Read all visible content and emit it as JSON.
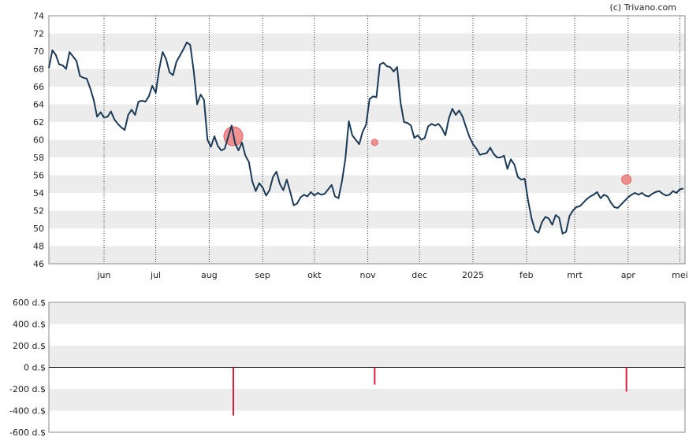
{
  "copyright": "(c) Trivano.com",
  "chart_data": [
    {
      "type": "line",
      "ylim": [
        46,
        74
      ],
      "y_ticks": [
        46,
        48,
        50,
        52,
        54,
        56,
        58,
        60,
        62,
        64,
        66,
        68,
        70,
        72,
        74
      ],
      "x_month_labels": [
        {
          "label": "jun",
          "day": 13
        },
        {
          "label": "jul",
          "day": 43
        },
        {
          "label": "aug",
          "day": 74
        },
        {
          "label": "sep",
          "day": 105
        },
        {
          "label": "okt",
          "day": 135
        },
        {
          "label": "nov",
          "day": 166
        },
        {
          "label": "dec",
          "day": 196
        },
        {
          "label": "2025",
          "day": 227
        },
        {
          "label": "feb",
          "day": 258
        },
        {
          "label": "mrt",
          "day": 286
        },
        {
          "label": "apr",
          "day": 317
        },
        {
          "label": "mei",
          "day": 347
        }
      ],
      "xlim": [
        -19,
        350
      ],
      "grid": true,
      "series": [
        {
          "color": "#1b3a57",
          "points": [
            [
              -19,
              68.1
            ],
            [
              -17,
              70.1
            ],
            [
              -15,
              69.6
            ],
            [
              -13,
              68.5
            ],
            [
              -11,
              68.4
            ],
            [
              -9,
              68.0
            ],
            [
              -7,
              69.9
            ],
            [
              -5,
              69.4
            ],
            [
              -3,
              68.9
            ],
            [
              -1,
              67.2
            ],
            [
              1,
              67.0
            ],
            [
              3,
              66.9
            ],
            [
              5,
              65.8
            ],
            [
              7,
              64.5
            ],
            [
              9,
              62.6
            ],
            [
              11,
              63.1
            ],
            [
              13,
              62.5
            ],
            [
              15,
              62.6
            ],
            [
              17,
              63.2
            ],
            [
              19,
              62.3
            ],
            [
              21,
              61.8
            ],
            [
              23,
              61.4
            ],
            [
              25,
              61.1
            ],
            [
              27,
              62.8
            ],
            [
              29,
              63.4
            ],
            [
              31,
              62.8
            ],
            [
              33,
              64.3
            ],
            [
              35,
              64.4
            ],
            [
              37,
              64.3
            ],
            [
              39,
              64.9
            ],
            [
              41,
              66.1
            ],
            [
              43,
              65.3
            ],
            [
              45,
              68.0
            ],
            [
              47,
              69.9
            ],
            [
              49,
              69.1
            ],
            [
              51,
              67.6
            ],
            [
              53,
              67.3
            ],
            [
              55,
              68.8
            ],
            [
              57,
              69.5
            ],
            [
              59,
              70.2
            ],
            [
              61,
              71.0
            ],
            [
              63,
              70.7
            ],
            [
              65,
              67.8
            ],
            [
              67,
              64.0
            ],
            [
              69,
              65.1
            ],
            [
              71,
              64.5
            ],
            [
              73,
              60.0
            ],
            [
              75,
              59.2
            ],
            [
              77,
              60.4
            ],
            [
              79,
              59.3
            ],
            [
              81,
              58.8
            ],
            [
              83,
              59.0
            ],
            [
              85,
              60.3
            ],
            [
              87,
              61.6
            ],
            [
              89,
              59.6
            ],
            [
              91,
              58.8
            ],
            [
              93,
              59.7
            ],
            [
              95,
              58.2
            ],
            [
              97,
              57.5
            ],
            [
              99,
              55.3
            ],
            [
              101,
              54.2
            ],
            [
              103,
              55.1
            ],
            [
              105,
              54.6
            ],
            [
              107,
              53.7
            ],
            [
              109,
              54.3
            ],
            [
              111,
              55.8
            ],
            [
              113,
              56.4
            ],
            [
              115,
              55.0
            ],
            [
              117,
              54.3
            ],
            [
              119,
              55.5
            ],
            [
              121,
              54.1
            ],
            [
              123,
              52.6
            ],
            [
              125,
              52.8
            ],
            [
              127,
              53.5
            ],
            [
              129,
              53.8
            ],
            [
              131,
              53.6
            ],
            [
              133,
              54.1
            ],
            [
              135,
              53.7
            ],
            [
              137,
              54.0
            ],
            [
              139,
              53.8
            ],
            [
              141,
              53.9
            ],
            [
              143,
              54.4
            ],
            [
              145,
              54.9
            ],
            [
              147,
              53.6
            ],
            [
              149,
              53.4
            ],
            [
              151,
              55.3
            ],
            [
              153,
              57.9
            ],
            [
              155,
              62.1
            ],
            [
              157,
              60.5
            ],
            [
              159,
              60.0
            ],
            [
              161,
              59.5
            ],
            [
              163,
              60.9
            ],
            [
              165,
              61.7
            ],
            [
              167,
              64.6
            ],
            [
              169,
              64.9
            ],
            [
              171,
              64.8
            ],
            [
              173,
              68.5
            ],
            [
              175,
              68.7
            ],
            [
              177,
              68.3
            ],
            [
              179,
              68.2
            ],
            [
              181,
              67.7
            ],
            [
              183,
              68.2
            ],
            [
              185,
              64.2
            ],
            [
              187,
              62.0
            ],
            [
              189,
              61.9
            ],
            [
              191,
              61.6
            ],
            [
              193,
              60.2
            ],
            [
              195,
              60.5
            ],
            [
              197,
              60.0
            ],
            [
              199,
              60.2
            ],
            [
              201,
              61.5
            ],
            [
              203,
              61.8
            ],
            [
              205,
              61.6
            ],
            [
              207,
              61.8
            ],
            [
              209,
              61.3
            ],
            [
              211,
              60.5
            ],
            [
              213,
              62.4
            ],
            [
              215,
              63.5
            ],
            [
              217,
              62.8
            ],
            [
              219,
              63.3
            ],
            [
              221,
              62.6
            ],
            [
              223,
              61.4
            ],
            [
              225,
              60.3
            ],
            [
              227,
              59.5
            ],
            [
              229,
              59.0
            ],
            [
              231,
              58.3
            ],
            [
              233,
              58.4
            ],
            [
              235,
              58.5
            ],
            [
              237,
              59.1
            ],
            [
              239,
              58.4
            ],
            [
              241,
              58.0
            ],
            [
              243,
              58.0
            ],
            [
              245,
              58.2
            ],
            [
              247,
              56.7
            ],
            [
              249,
              57.8
            ],
            [
              251,
              57.2
            ],
            [
              253,
              55.8
            ],
            [
              255,
              55.5
            ],
            [
              257,
              55.6
            ],
            [
              259,
              53.1
            ],
            [
              261,
              51.1
            ],
            [
              263,
              49.8
            ],
            [
              265,
              49.5
            ],
            [
              267,
              50.7
            ],
            [
              269,
              51.3
            ],
            [
              271,
              51.1
            ],
            [
              273,
              50.4
            ],
            [
              275,
              51.5
            ],
            [
              277,
              51.2
            ],
            [
              279,
              49.4
            ],
            [
              281,
              49.6
            ],
            [
              283,
              51.4
            ],
            [
              285,
              52.0
            ],
            [
              287,
              52.4
            ],
            [
              289,
              52.5
            ],
            [
              291,
              52.9
            ],
            [
              293,
              53.3
            ],
            [
              295,
              53.6
            ],
            [
              297,
              53.8
            ],
            [
              299,
              54.1
            ],
            [
              301,
              53.4
            ],
            [
              303,
              53.8
            ],
            [
              305,
              53.6
            ],
            [
              307,
              52.9
            ],
            [
              309,
              52.4
            ],
            [
              311,
              52.3
            ],
            [
              313,
              52.7
            ],
            [
              315,
              53.1
            ],
            [
              317,
              53.5
            ],
            [
              319,
              53.8
            ],
            [
              321,
              54.0
            ],
            [
              323,
              53.8
            ],
            [
              325,
              54.0
            ],
            [
              327,
              53.7
            ],
            [
              329,
              53.6
            ],
            [
              331,
              53.9
            ],
            [
              333,
              54.1
            ],
            [
              335,
              54.2
            ],
            [
              337,
              53.9
            ],
            [
              339,
              53.7
            ],
            [
              341,
              53.8
            ],
            [
              343,
              54.2
            ],
            [
              345,
              54.0
            ],
            [
              347,
              54.4
            ],
            [
              349,
              54.5
            ]
          ]
        }
      ],
      "markers": [
        {
          "day": 88,
          "value": 60.4,
          "size": 12,
          "color": "#f08080"
        },
        {
          "day": 170,
          "value": 59.7,
          "size": 4,
          "color": "#f08080"
        },
        {
          "day": 316,
          "value": 55.5,
          "size": 6,
          "color": "#f08080"
        }
      ]
    },
    {
      "type": "bar",
      "ylim": [
        -600,
        600
      ],
      "y_ticks": [
        {
          "value": 600,
          "label": "600 d.$"
        },
        {
          "value": 400,
          "label": "400 d.$"
        },
        {
          "value": 200,
          "label": "200 d.$"
        },
        {
          "value": 0,
          "label": "0 d.$"
        },
        {
          "value": -200,
          "label": "-200 d.$"
        },
        {
          "value": -400,
          "label": "-400 d.$"
        },
        {
          "value": -600,
          "label": "-600 d.$"
        }
      ],
      "bars": [
        {
          "day": 88,
          "value": -445,
          "color": "#dc1e3c"
        },
        {
          "day": 170,
          "value": -160,
          "color": "#dc1e3c"
        },
        {
          "day": 316,
          "value": -225,
          "color": "#dc1e3c"
        }
      ]
    }
  ]
}
